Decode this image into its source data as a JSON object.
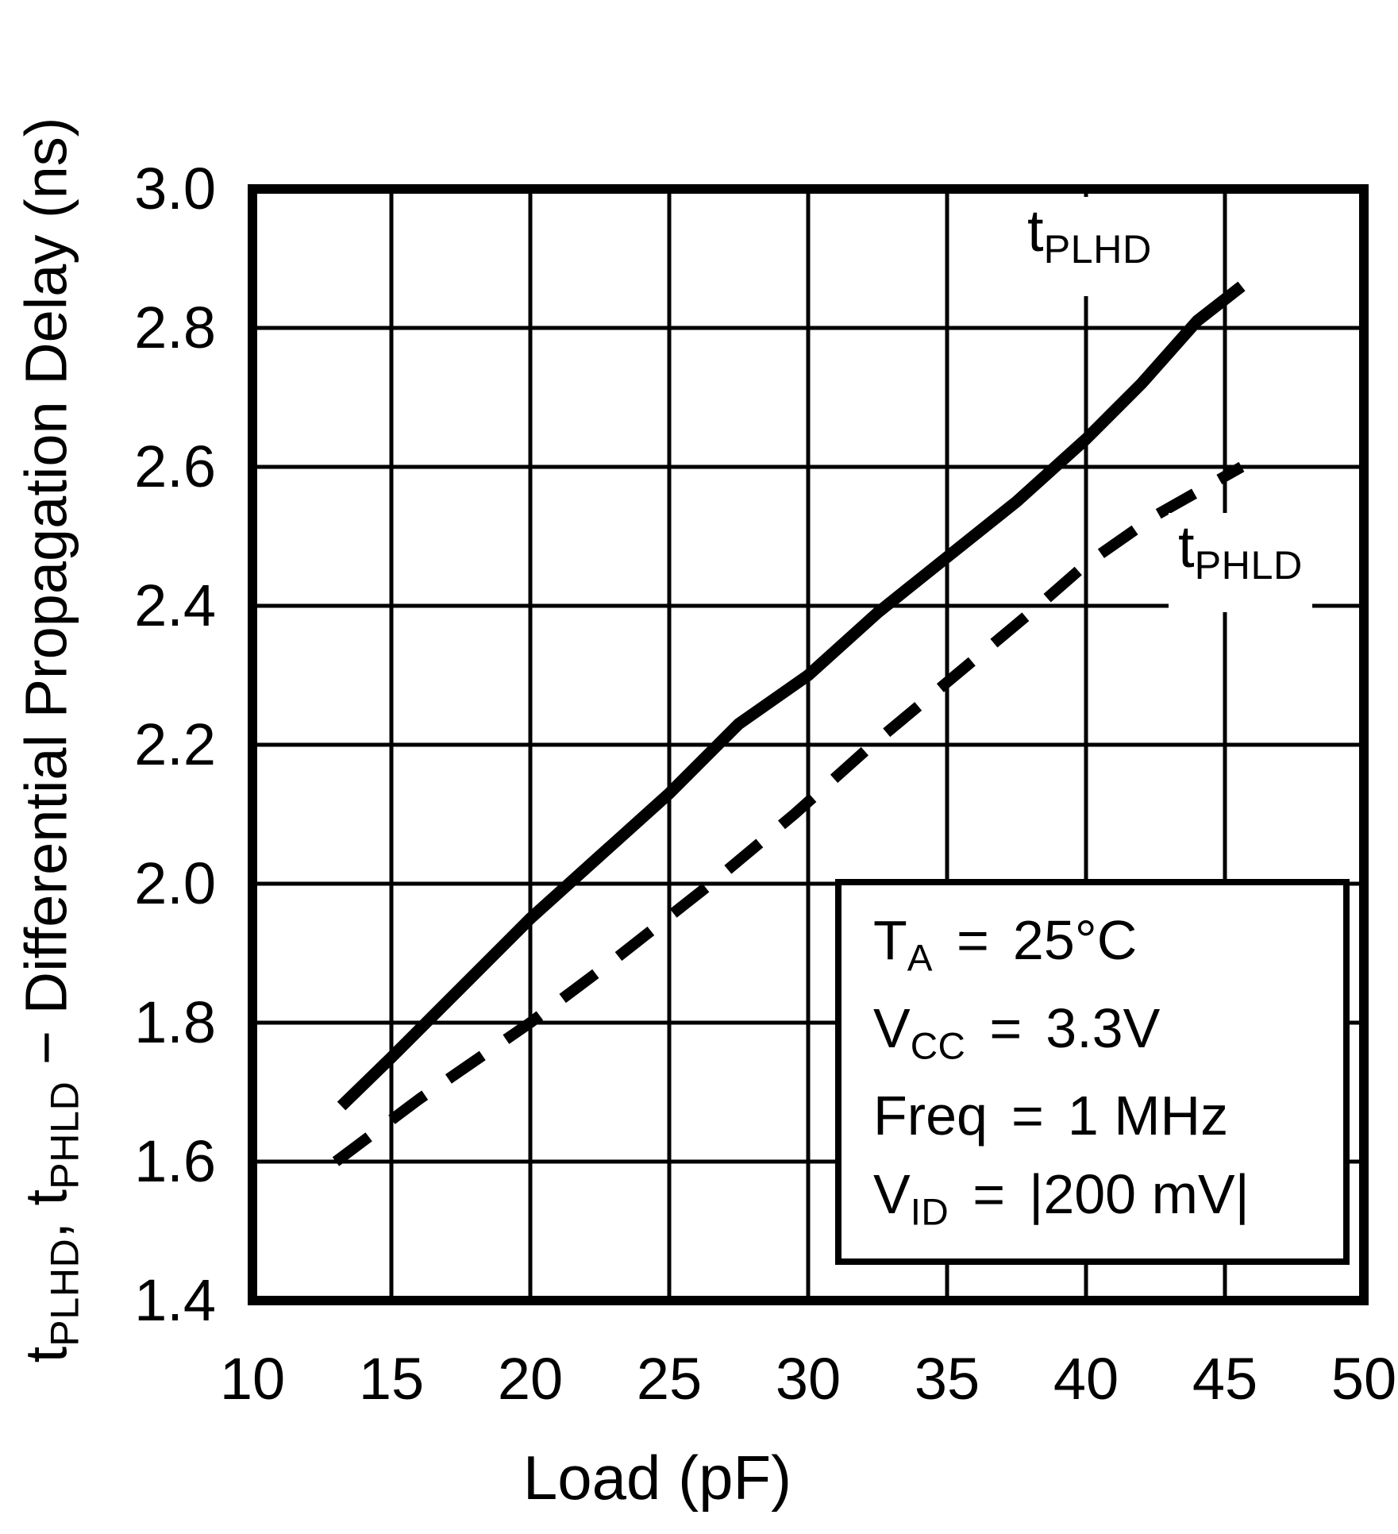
{
  "figure": {
    "x_axis": {
      "title": "Load (pF)",
      "ticks": [
        "10",
        "15",
        "20",
        "25",
        "30",
        "35",
        "40",
        "45",
        "50"
      ]
    },
    "y_axis": {
      "ticks": [
        "3.0",
        "2.8",
        "2.6",
        "2.4",
        "2.2",
        "2.0",
        "1.8",
        "1.6",
        "1.4"
      ],
      "title_parts": [
        {
          "text": "t",
          "sub": false
        },
        {
          "text": "PLHD",
          "sub": true
        },
        {
          "text": ", t",
          "sub": false
        },
        {
          "text": "PHLD",
          "sub": true
        },
        {
          "text": " − Differential Propagation Delay (ns)",
          "sub": false
        }
      ]
    },
    "curve_labels": [
      {
        "base": "t",
        "sub": "PLHD"
      },
      {
        "base": "t",
        "sub": "PHLD"
      }
    ],
    "conditions": [
      {
        "lhs": "T",
        "sub": "A",
        "eq": "=",
        "value": "25°C"
      },
      {
        "lhs": "V",
        "sub": "CC",
        "eq": "=",
        "value": "3.3V"
      },
      {
        "lhs": "Freq",
        "sub": "",
        "eq": "=",
        "value": "1 MHz"
      },
      {
        "lhs": "V",
        "sub": "ID",
        "eq": "=",
        "value": "|200 mV|"
      }
    ],
    "colors": {
      "line": "#000000",
      "background": "#ffffff"
    }
  },
  "chart_data": {
    "type": "line",
    "title": "",
    "xlabel": "Load (pF)",
    "ylabel": "tPLHD, tPHLD − Differential Propagation Delay (ns)",
    "xlim": [
      10,
      50
    ],
    "ylim": [
      1.4,
      3.0
    ],
    "x_tick_step": 5,
    "y_tick_step": 0.2,
    "grid": true,
    "legend_position": "on-curve",
    "series": [
      {
        "name": "tPLHD",
        "style": "solid",
        "x": [
          13.2,
          15,
          17.5,
          20,
          22.5,
          25,
          27.5,
          30,
          32.5,
          35,
          37.5,
          40,
          42,
          44,
          45.6
        ],
        "y": [
          1.68,
          1.75,
          1.85,
          1.95,
          2.04,
          2.13,
          2.23,
          2.3,
          2.39,
          2.47,
          2.55,
          2.64,
          2.72,
          2.81,
          2.86
        ]
      },
      {
        "name": "tPHLD",
        "style": "dashed",
        "x": [
          13,
          16,
          20,
          23,
          26.5,
          29.5,
          32.3,
          35,
          38,
          40,
          42.5,
          45.6
        ],
        "y": [
          1.6,
          1.69,
          1.8,
          1.89,
          2.0,
          2.1,
          2.2,
          2.29,
          2.39,
          2.46,
          2.53,
          2.6
        ]
      }
    ],
    "annotations": [
      "TA = 25°C",
      "VCC = 3.3V",
      "Freq = 1 MHz",
      "VID = |200 mV|"
    ]
  }
}
